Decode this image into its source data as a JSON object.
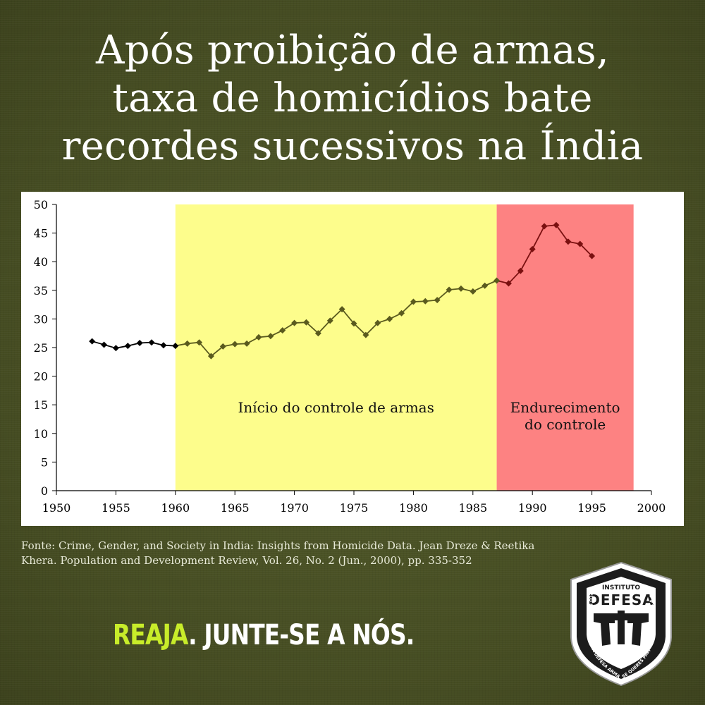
{
  "headline": {
    "line1": "Após proibição de armas,",
    "line2": "taxa de homicídios bate",
    "line3": "recordes sucessivos na Índia"
  },
  "chart_data": {
    "type": "line",
    "title": "",
    "xlabel": "",
    "ylabel": "",
    "xlim": [
      1950,
      2000
    ],
    "ylim": [
      0,
      50
    ],
    "x_ticks": [
      1950,
      1955,
      1960,
      1965,
      1970,
      1975,
      1980,
      1985,
      1990,
      1995,
      2000
    ],
    "y_ticks": [
      0,
      5,
      10,
      15,
      20,
      25,
      30,
      35,
      40,
      45,
      50
    ],
    "grid": false,
    "x": [
      1953,
      1954,
      1955,
      1956,
      1957,
      1958,
      1959,
      1960,
      1961,
      1962,
      1963,
      1964,
      1965,
      1966,
      1967,
      1968,
      1969,
      1970,
      1971,
      1972,
      1973,
      1974,
      1975,
      1976,
      1977,
      1978,
      1979,
      1980,
      1981,
      1982,
      1983,
      1984,
      1985,
      1986,
      1987,
      1988,
      1989,
      1990,
      1991,
      1992,
      1993,
      1994,
      1995
    ],
    "y": [
      26.1,
      25.5,
      24.9,
      25.3,
      25.8,
      25.9,
      25.4,
      25.3,
      25.7,
      25.9,
      23.5,
      25.2,
      25.6,
      25.7,
      26.8,
      27.0,
      28.0,
      29.3,
      29.4,
      27.5,
      29.7,
      31.7,
      29.2,
      27.2,
      29.3,
      30.0,
      31.0,
      33.0,
      33.1,
      33.3,
      35.1,
      35.3,
      34.8,
      35.8,
      36.7,
      36.2,
      38.4,
      42.2,
      46.2,
      46.4,
      43.5,
      43.1,
      41.0
    ],
    "regions": [
      {
        "label": "Início do controle de armas",
        "from": 1960,
        "to": 1987,
        "color": "#fdfd8c"
      },
      {
        "label_line1": "Endurecimento",
        "label_line2": "do controle",
        "from": 1987,
        "to": 1998.5,
        "color": "#fd8282"
      }
    ],
    "segment_colors": {
      "pre": "#000000",
      "mid": "#5a5a1e",
      "post": "#7a1010"
    }
  },
  "source": {
    "text": "Fonte: Crime, Gender, and Society in India: Insights from Homicide Data. Jean Dreze & Reetika Khera. Population and Development Review, Vol. 26, No. 2 (Jun., 2000), pp. 335-352"
  },
  "cta": {
    "highlight": "REAJA",
    "rest": ". JUNTE-SE A NÓS.",
    "highlight_color": "#c8ec2a"
  },
  "logo": {
    "top_text": "INSTITUTO",
    "name": "DEFESA",
    "left_motto": "PELO DIREITO À LEGÍTIMA DEFESA ARMADA",
    "right_motto": "SE QUERES PAZ, PREPARA-TE PARA A GUERRA",
    "icon": "crossed-pistols-icon"
  }
}
